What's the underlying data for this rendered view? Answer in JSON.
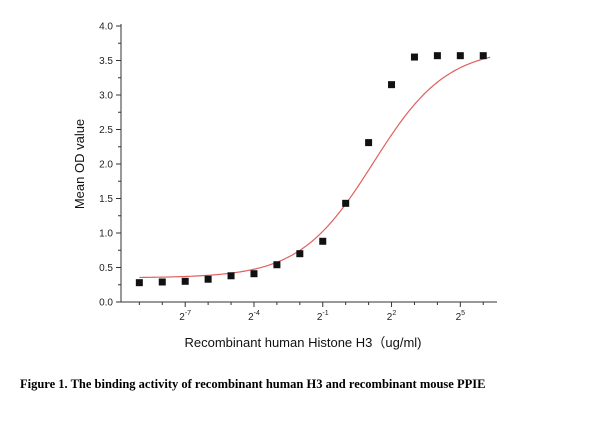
{
  "chart_data": {
    "type": "scatter",
    "xlabel": "Recombinant human Histone H3（ug/ml)",
    "ylabel": "Mean OD value",
    "x_scale": "log2",
    "xlim_log2": [
      -9.8,
      6.6
    ],
    "ylim": [
      0.0,
      4.0
    ],
    "y_ticks": [
      {
        "value": 0.0,
        "label": "0.0"
      },
      {
        "value": 0.5,
        "label": "0.5"
      },
      {
        "value": 1.0,
        "label": "1.0"
      },
      {
        "value": 1.5,
        "label": "1.5"
      },
      {
        "value": 2.0,
        "label": "2.0"
      },
      {
        "value": 2.5,
        "label": "2.5"
      },
      {
        "value": 3.0,
        "label": "3.0"
      },
      {
        "value": 3.5,
        "label": "3.5"
      },
      {
        "value": 4.0,
        "label": "4.0"
      }
    ],
    "x_ticks": [
      {
        "exp": -7,
        "base": "2",
        "sup": "-7"
      },
      {
        "exp": -4,
        "base": "2",
        "sup": "-4"
      },
      {
        "exp": -1,
        "base": "2",
        "sup": "-1"
      },
      {
        "exp": 2,
        "base": "2",
        "sup": "2"
      },
      {
        "exp": 5,
        "base": "2",
        "sup": "5"
      }
    ],
    "grid": false,
    "series": [
      {
        "marker": "square",
        "marker_color": "#111111",
        "x_log2": [
          -9,
          -8,
          -7,
          -6,
          -5,
          -4,
          -3,
          -2,
          -1,
          0,
          1,
          2,
          3,
          4,
          5,
          6
        ],
        "y": [
          0.28,
          0.29,
          0.3,
          0.33,
          0.38,
          0.41,
          0.54,
          0.7,
          0.88,
          1.43,
          2.31,
          3.15,
          3.55,
          3.57,
          3.57,
          3.57
        ]
      }
    ],
    "fit_curve": {
      "model": "4PL",
      "color": "#e06060",
      "bottom": 0.35,
      "top": 3.68,
      "ec50_log2": 1.2,
      "slope": 0.9
    }
  },
  "caption": "Figure 1. The binding activity of recombinant human H3 and recombinant mouse PPIE"
}
